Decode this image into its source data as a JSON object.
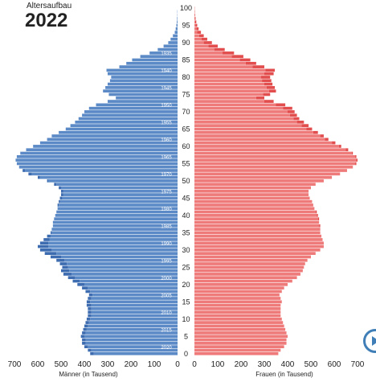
{
  "chart_data": {
    "type": "bar",
    "orientation": "horizontal-pyramid",
    "title": "Altersaufbau",
    "year_label": "2022",
    "xlabel_left": "Männer (in Tausend)",
    "xlabel_right": "Frauen (in Tausend)",
    "xlim": [
      0,
      700
    ],
    "x_ticks": [
      700,
      600,
      500,
      400,
      300,
      200,
      100,
      0
    ],
    "age_ticks": [
      0,
      5,
      10,
      15,
      20,
      25,
      30,
      35,
      40,
      45,
      50,
      55,
      60,
      65,
      70,
      75,
      80,
      85,
      90,
      95,
      100
    ],
    "birth_year_ticks": [
      1935,
      1940,
      1945,
      1950,
      1955,
      1960,
      1965,
      1970,
      1975,
      1980,
      1985,
      1990,
      1995,
      2000,
      2005,
      2010,
      2015,
      2020
    ],
    "ages": [
      0,
      1,
      2,
      3,
      4,
      5,
      6,
      7,
      8,
      9,
      10,
      11,
      12,
      13,
      14,
      15,
      16,
      17,
      18,
      19,
      20,
      21,
      22,
      23,
      24,
      25,
      26,
      27,
      28,
      29,
      30,
      31,
      32,
      33,
      34,
      35,
      36,
      37,
      38,
      39,
      40,
      41,
      42,
      43,
      44,
      45,
      46,
      47,
      48,
      49,
      50,
      51,
      52,
      53,
      54,
      55,
      56,
      57,
      58,
      59,
      60,
      61,
      62,
      63,
      64,
      65,
      66,
      67,
      68,
      69,
      70,
      71,
      72,
      73,
      74,
      75,
      76,
      77,
      78,
      79,
      80,
      81,
      82,
      83,
      84,
      85,
      86,
      87,
      88,
      89,
      90,
      91,
      92,
      93,
      94,
      95,
      96,
      97,
      98,
      99,
      100
    ],
    "series": [
      {
        "name": "Männer",
        "color": "#5b8ac6",
        "surplus_color": "#3d6cb0",
        "values": [
          375,
          385,
          400,
          410,
          410,
          415,
          410,
          405,
          400,
          395,
          390,
          385,
          385,
          385,
          390,
          390,
          385,
          380,
          395,
          410,
          430,
          450,
          470,
          490,
          500,
          495,
          505,
          520,
          545,
          570,
          590,
          600,
          590,
          575,
          560,
          545,
          540,
          535,
          535,
          530,
          525,
          520,
          515,
          515,
          510,
          505,
          500,
          500,
          510,
          530,
          560,
          600,
          640,
          665,
          680,
          690,
          695,
          690,
          675,
          650,
          620,
          590,
          560,
          540,
          510,
          480,
          460,
          440,
          425,
          410,
          400,
          380,
          350,
          300,
          265,
          295,
          320,
          310,
          300,
          290,
          285,
          300,
          305,
          250,
          220,
          195,
          160,
          120,
          85,
          60,
          40,
          30,
          20,
          12,
          8,
          5,
          3,
          2,
          1,
          1,
          0
        ]
      },
      {
        "name": "Frauen",
        "color": "#ee7a7a",
        "surplus_color": "#e24e4e",
        "values": [
          360,
          370,
          385,
          395,
          395,
          400,
          395,
          390,
          385,
          380,
          375,
          370,
          370,
          370,
          370,
          375,
          370,
          365,
          375,
          385,
          400,
          420,
          440,
          455,
          465,
          470,
          475,
          485,
          500,
          520,
          540,
          555,
          555,
          550,
          545,
          540,
          540,
          540,
          535,
          535,
          530,
          525,
          515,
          510,
          505,
          495,
          490,
          490,
          500,
          520,
          555,
          590,
          625,
          655,
          680,
          695,
          700,
          695,
          680,
          660,
          630,
          605,
          575,
          555,
          530,
          505,
          490,
          470,
          450,
          440,
          430,
          420,
          390,
          340,
          300,
          325,
          350,
          345,
          335,
          330,
          325,
          340,
          345,
          300,
          265,
          240,
          210,
          170,
          130,
          100,
          75,
          55,
          40,
          28,
          18,
          12,
          8,
          5,
          3,
          2,
          1
        ]
      }
    ]
  }
}
